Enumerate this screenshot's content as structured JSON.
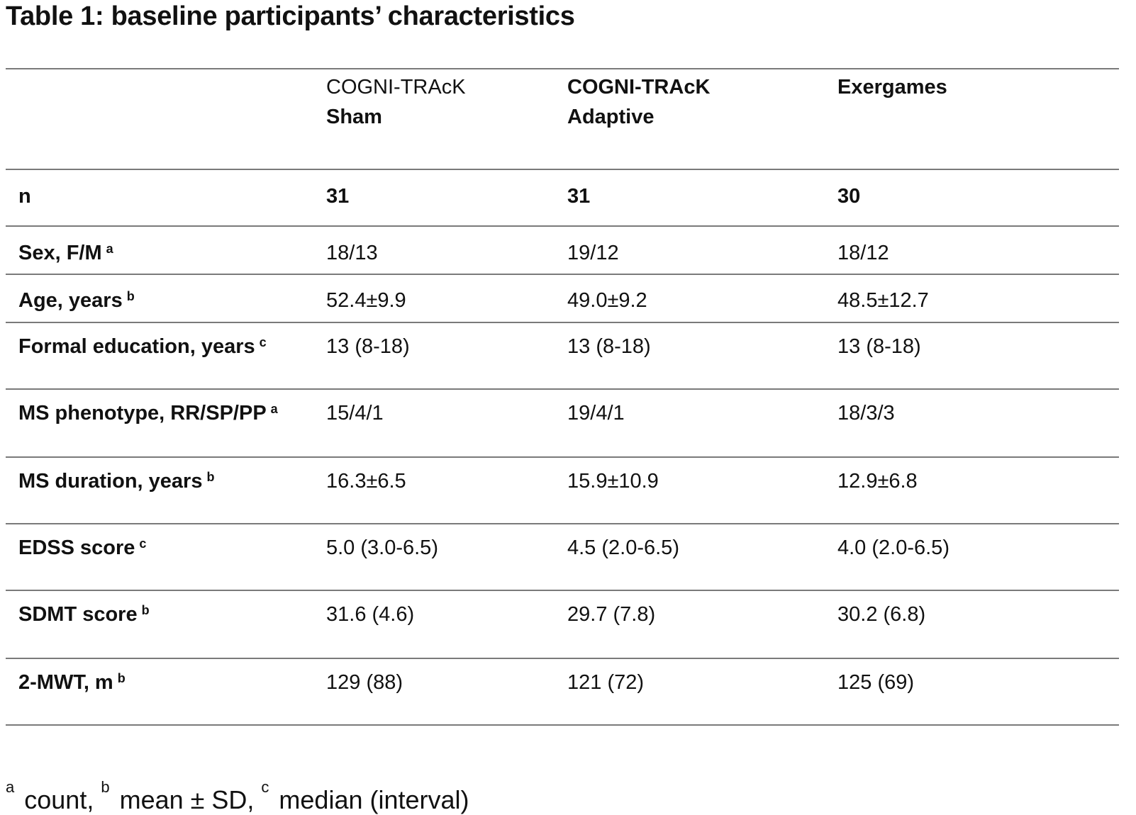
{
  "title": "Table 1: baseline participants’ characteristics",
  "columns": [
    {
      "line1": "COGNI-TRAcK",
      "line2": "Sham",
      "line1_bold": false
    },
    {
      "line1": "COGNI-TRAcK",
      "line2": "Adaptive",
      "line1_bold": true
    },
    {
      "line1": "Exergames",
      "line2": "",
      "line1_bold": true
    }
  ],
  "rows": [
    {
      "label": "n",
      "sup": "",
      "values": [
        "31",
        "31",
        "30"
      ],
      "bold_values": true
    },
    {
      "label": "Sex, F/M",
      "sup": "a",
      "values": [
        "18/13",
        "19/12",
        "18/12"
      ],
      "bold_values": false
    },
    {
      "label": "Age, years",
      "sup": "b",
      "values": [
        "52.4±9.9",
        "49.0±9.2",
        "48.5±12.7"
      ],
      "bold_values": false
    },
    {
      "label": "Formal education, years",
      "sup": "c",
      "values": [
        "13 (8-18)",
        "13 (8-18)",
        "13 (8-18)"
      ],
      "bold_values": false
    },
    {
      "label": "MS phenotype, RR/SP/PP",
      "sup": "a",
      "values": [
        "15/4/1",
        "19/4/1",
        "18/3/3"
      ],
      "bold_values": false
    },
    {
      "label": "MS duration, years",
      "sup": "b",
      "values": [
        "16.3±6.5",
        "15.9±10.9",
        "12.9±6.8"
      ],
      "bold_values": false
    },
    {
      "label": "EDSS score",
      "sup": "c",
      "values": [
        "5.0 (3.0-6.5)",
        "4.5 (2.0-6.5)",
        "4.0 (2.0-6.5)"
      ],
      "bold_values": false
    },
    {
      "label": "SDMT score",
      "sup": "b",
      "values": [
        "31.6 (4.6)",
        "29.7 (7.8)",
        "30.2 (6.8)"
      ],
      "bold_values": false
    },
    {
      "label": "2-MWT, m",
      "sup": "b",
      "values": [
        "129 (88)",
        "121 (72)",
        "125 (69)"
      ],
      "bold_values": false
    }
  ],
  "footnote": {
    "a_mark": "a",
    "a_text": " count, ",
    "b_mark": "b",
    "b_text": " mean ± SD, ",
    "c_mark": "c",
    "c_text": " median (interval)"
  }
}
